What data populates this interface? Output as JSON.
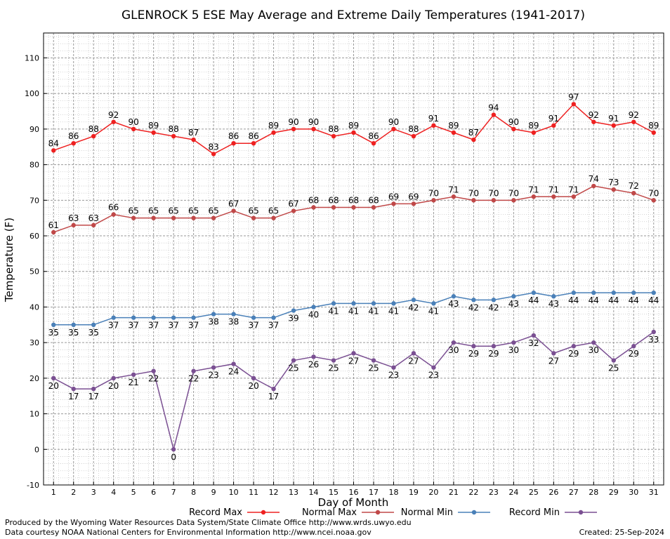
{
  "chart_data": {
    "type": "line",
    "title": "GLENROCK 5 ESE May Average and Extreme Daily Temperatures (1941-2017)",
    "xlabel": "Day of Month",
    "ylabel": "Temperature (F)",
    "x": [
      1,
      2,
      3,
      4,
      5,
      6,
      7,
      8,
      9,
      10,
      11,
      12,
      13,
      14,
      15,
      16,
      17,
      18,
      19,
      20,
      21,
      22,
      23,
      24,
      25,
      26,
      27,
      28,
      29,
      30,
      31
    ],
    "xlim": [
      0.5,
      31.5
    ],
    "ylim": [
      -10,
      117
    ],
    "yticks": [
      -10,
      0,
      10,
      20,
      30,
      40,
      50,
      60,
      70,
      80,
      90,
      100,
      110
    ],
    "grid": true,
    "legend_position": "bottom",
    "series": [
      {
        "name": "Record Max",
        "color": "#ee2020",
        "label_pos": "above",
        "values": [
          84,
          86,
          88,
          92,
          90,
          89,
          88,
          87,
          83,
          86,
          86,
          89,
          90,
          90,
          88,
          89,
          86,
          90,
          88,
          91,
          89,
          87,
          94,
          90,
          89,
          91,
          97,
          92,
          91,
          92,
          89
        ]
      },
      {
        "name": "Normal Max",
        "color": "#c04848",
        "label_pos": "above",
        "values": [
          61,
          63,
          63,
          66,
          65,
          65,
          65,
          65,
          65,
          67,
          65,
          65,
          67,
          68,
          68,
          68,
          68,
          69,
          69,
          70,
          71,
          70,
          70,
          70,
          71,
          71,
          71,
          74,
          73,
          72,
          70
        ]
      },
      {
        "name": "Normal Min",
        "color": "#4a80b8",
        "label_pos": "below",
        "values": [
          35,
          35,
          35,
          37,
          37,
          37,
          37,
          37,
          38,
          38,
          37,
          37,
          39,
          40,
          41,
          41,
          41,
          41,
          42,
          41,
          43,
          42,
          42,
          43,
          44,
          43,
          44,
          44,
          44,
          44,
          44
        ]
      },
      {
        "name": "Record Min",
        "color": "#7a4f92",
        "label_pos": "below",
        "values": [
          20,
          17,
          17,
          20,
          21,
          22,
          0,
          22,
          23,
          24,
          20,
          17,
          25,
          26,
          25,
          27,
          25,
          23,
          27,
          23,
          30,
          29,
          29,
          30,
          32,
          27,
          29,
          30,
          25,
          29,
          33
        ]
      }
    ]
  },
  "footer": {
    "produced_by": "Produced by the Wyoming Water Resources Data System/State Climate Office http://www.wrds.uwyo.edu",
    "courtesy": "Data courtesy NOAA National Centers for Environmental Information http://www.ncei.noaa.gov",
    "created": "Created:  25-Sep-2024"
  }
}
